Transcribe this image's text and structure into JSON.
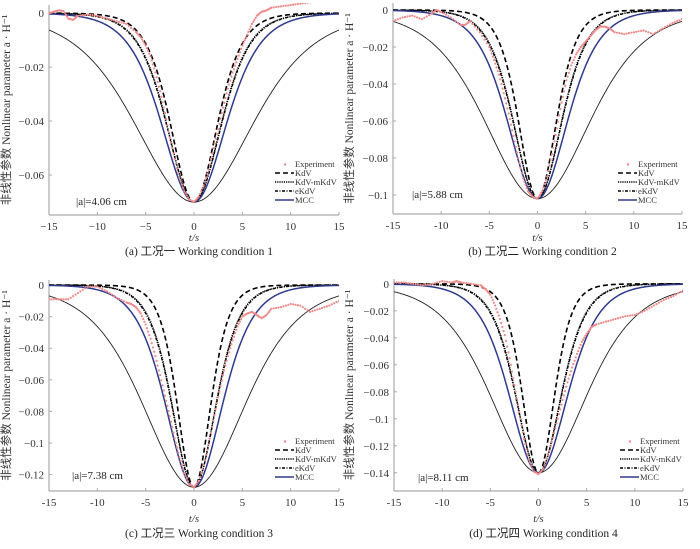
{
  "colors": {
    "experiment": "#f08a8a",
    "kdv": "#000000",
    "kdv_mkdv": "#000000",
    "ekdv": "#000000",
    "mcc": "#2e3a8c",
    "axis": "#aaaaaa"
  },
  "legend_entries": [
    "Experiment",
    "KdV",
    "KdV-mKdV",
    "eKdV",
    "MCC"
  ],
  "chart_data": [
    {
      "type": "line",
      "id": "a",
      "caption": "(a) 工况一 Working condition 1",
      "xlabel": "t/s",
      "ylabel": "非线性参数 Nonlinear parameter a · H⁻¹",
      "annotation": "|a|=4.06 cm",
      "xlim": [
        -15,
        15
      ],
      "ylim": [
        -0.0748,
        0.003
      ],
      "xticks": [
        -15,
        -10,
        -5,
        0,
        5,
        10,
        15
      ],
      "xtick_labels": [
        "−15",
        "−10",
        "−5",
        "0",
        "5",
        "10",
        "15"
      ],
      "yticks": [
        0,
        -0.02,
        -0.04,
        -0.06
      ],
      "ytick_labels": [
        "0",
        "−0.02",
        "−0.04",
        "−0.06"
      ],
      "legend_position": "bottom-right",
      "amplitude": -0.07,
      "series": [
        {
          "name": "KdV",
          "style": "dashed",
          "model": "sech2",
          "width": 3.2
        },
        {
          "name": "KdV-mKdV",
          "style": "dotted",
          "model": "sech2",
          "width": 3.7
        },
        {
          "name": "eKdV",
          "style": "dashdot",
          "model": "sech2",
          "width": 3.75
        },
        {
          "name": "MCC",
          "style": "solid-blue",
          "model": "sech2",
          "width": 4.4
        },
        {
          "name": "wide-reference",
          "style": "solid-thin",
          "model": "sech2",
          "width": 8.0
        },
        {
          "name": "Experiment",
          "style": "markers",
          "x": [
            -15,
            -14.5,
            -14,
            -13.5,
            -13,
            -12.5,
            -12,
            -11,
            -10,
            -9,
            -8,
            -7,
            -6,
            -5.5,
            -5,
            -4.5,
            -4,
            -3.5,
            -3,
            -2.5,
            -2,
            -1.5,
            -1,
            -0.5,
            0,
            0.5,
            1,
            1.5,
            2,
            2.5,
            3,
            3.5,
            4,
            4.5,
            5,
            5.5,
            6,
            6.5,
            7,
            7.5,
            8,
            9,
            10,
            11,
            12,
            13
          ],
          "y": [
            0,
            0.0005,
            0.001,
            0.0008,
            -0.002,
            -0.0025,
            -0.001,
            -0.0005,
            -0.001,
            -0.002,
            -0.003,
            -0.004,
            -0.007,
            -0.009,
            -0.012,
            -0.016,
            -0.022,
            -0.029,
            -0.037,
            -0.046,
            -0.054,
            -0.061,
            -0.066,
            -0.069,
            -0.07,
            -0.068,
            -0.064,
            -0.058,
            -0.05,
            -0.043,
            -0.035,
            -0.028,
            -0.022,
            -0.017,
            -0.012,
            -0.008,
            -0.004,
            -0.001,
            0.0005,
            0.001,
            0.002,
            0.0025,
            0.003,
            0.0035,
            0.004,
            0.005
          ]
        }
      ]
    },
    {
      "type": "line",
      "id": "b",
      "caption": "(b) 工况二 Working condition 2",
      "xlabel": "t/s",
      "ylabel": "非线性参数 Nonlinear parameter a · H⁻¹",
      "annotation": "|a|=5.88 cm",
      "xlim": [
        -15,
        15
      ],
      "ylim": [
        -0.1103,
        0.0038
      ],
      "xticks": [
        -15,
        -10,
        -5,
        0,
        5,
        10,
        15
      ],
      "xtick_labels": [
        "-15",
        "-10",
        "-5",
        "0",
        "5",
        "10",
        "15"
      ],
      "yticks": [
        0,
        -0.02,
        -0.04,
        -0.06,
        -0.08,
        -0.1
      ],
      "ytick_labels": [
        "0",
        "−0.02",
        "−0.04",
        "−0.06",
        "−0.08",
        "−0.1"
      ],
      "legend_position": "bottom-right",
      "amplitude": -0.102,
      "series": [
        {
          "name": "KdV",
          "style": "dashed",
          "model": "sech2",
          "width": 2.6
        },
        {
          "name": "KdV-mKdV",
          "style": "dotted",
          "model": "sech2",
          "width": 3.3
        },
        {
          "name": "eKdV",
          "style": "dashdot",
          "model": "sech2",
          "width": 3.35
        },
        {
          "name": "MCC",
          "style": "solid-blue",
          "model": "sech2",
          "width": 4.1
        },
        {
          "name": "wide-reference",
          "style": "solid-thin",
          "model": "sech2",
          "width": 7.2
        },
        {
          "name": "Experiment",
          "style": "markers",
          "x": [
            -15,
            -14,
            -13,
            -12,
            -11,
            -10.5,
            -10,
            -9,
            -8,
            -7.5,
            -7,
            -6,
            -5,
            -4.5,
            -4,
            -3.5,
            -3,
            -2.5,
            -2,
            -1.5,
            -1,
            -0.5,
            0,
            0.5,
            1,
            1.5,
            2,
            2.5,
            3,
            3.5,
            4,
            4.5,
            5,
            5.5,
            6,
            6.5,
            7,
            7.5,
            8,
            9,
            10,
            11,
            12,
            13,
            14,
            15
          ],
          "y": [
            -0.006,
            -0.004,
            -0.003,
            -0.005,
            -0.002,
            0,
            -0.001,
            -0.004,
            -0.008,
            -0.008,
            -0.006,
            -0.012,
            -0.02,
            -0.027,
            -0.035,
            -0.045,
            -0.056,
            -0.068,
            -0.08,
            -0.091,
            -0.098,
            -0.101,
            -0.102,
            -0.098,
            -0.09,
            -0.078,
            -0.064,
            -0.05,
            -0.038,
            -0.03,
            -0.024,
            -0.02,
            -0.017,
            -0.014,
            -0.011,
            -0.009,
            -0.009,
            -0.01,
            -0.012,
            -0.013,
            -0.012,
            -0.011,
            -0.013,
            -0.01,
            -0.007,
            -0.005
          ]
        }
      ]
    },
    {
      "type": "line",
      "id": "c",
      "caption": "(c) 工况三 Working condition 3",
      "xlabel": "t/s",
      "ylabel": "非线性参数 Nonlinear parameter a · H⁻¹",
      "annotation": "|a|=7.38 cm",
      "xlim": [
        -15,
        15
      ],
      "ylim": [
        -0.1304,
        0.0032
      ],
      "xticks": [
        -15,
        -10,
        -5,
        0,
        5,
        10,
        15
      ],
      "xtick_labels": [
        "-15",
        "-10",
        "-5",
        "0",
        "5",
        "10",
        "15"
      ],
      "yticks": [
        0,
        -0.02,
        -0.04,
        -0.06,
        -0.08,
        -0.1,
        -0.12
      ],
      "ytick_labels": [
        "0",
        "−0.02",
        "−0.04",
        "−0.06",
        "−0.08",
        "−0.1",
        "−0.12"
      ],
      "legend_position": "bottom-right",
      "amplitude": -0.128,
      "series": [
        {
          "name": "KdV",
          "style": "dashed",
          "model": "sech2",
          "width": 2.3
        },
        {
          "name": "KdV-mKdV",
          "style": "dotted",
          "model": "sech2",
          "width": 3.0
        },
        {
          "name": "eKdV",
          "style": "dashdot",
          "model": "sech2",
          "width": 3.05
        },
        {
          "name": "MCC",
          "style": "solid-blue",
          "model": "sech2",
          "width": 3.9
        },
        {
          "name": "wide-reference",
          "style": "solid-thin",
          "model": "sech2",
          "width": 7.0
        },
        {
          "name": "Experiment",
          "style": "markers",
          "x": [
            -15,
            -14,
            -13,
            -12,
            -11,
            -10,
            -9,
            -8,
            -7,
            -6.5,
            -6,
            -5.5,
            -5,
            -4.5,
            -4,
            -3.5,
            -3,
            -2.5,
            -2,
            -1.5,
            -1,
            -0.5,
            0,
            0.5,
            1,
            1.5,
            2,
            2.5,
            3,
            3.5,
            4,
            4.5,
            5,
            5.5,
            6,
            6.5,
            7,
            7.5,
            8,
            9,
            10,
            11,
            12,
            13,
            14,
            15
          ],
          "y": [
            -0.009,
            -0.009,
            -0.009,
            -0.005,
            -0.001,
            -0.001,
            -0.004,
            -0.008,
            -0.011,
            -0.012,
            -0.014,
            -0.018,
            -0.025,
            -0.034,
            -0.045,
            -0.057,
            -0.07,
            -0.083,
            -0.097,
            -0.109,
            -0.119,
            -0.126,
            -0.128,
            -0.124,
            -0.114,
            -0.101,
            -0.086,
            -0.071,
            -0.057,
            -0.045,
            -0.035,
            -0.026,
            -0.02,
            -0.018,
            -0.017,
            -0.019,
            -0.021,
            -0.019,
            -0.015,
            -0.014,
            -0.012,
            -0.013,
            -0.017,
            -0.015,
            -0.013,
            -0.01
          ]
        }
      ]
    },
    {
      "type": "line",
      "id": "d",
      "caption": "(d) 工况四 Working condition 4",
      "xlabel": "t/s",
      "ylabel": "非线性参数 Nonlinear parameter a · H⁻¹",
      "annotation": "|a|=8.11 cm",
      "xlim": [
        -15,
        15
      ],
      "ylim": [
        -0.1535,
        0.0036
      ],
      "xticks": [
        -15,
        -10,
        -5,
        0,
        5,
        10,
        15
      ],
      "xtick_labels": [
        "-15",
        "-10",
        "-5",
        "0",
        "5",
        "10",
        "15"
      ],
      "yticks": [
        0,
        -0.02,
        -0.04,
        -0.06,
        -0.08,
        -0.1,
        -0.12,
        -0.14
      ],
      "ytick_labels": [
        "0",
        "−0.02",
        "−0.04",
        "−0.06",
        "−0.08",
        "−0.1",
        "−0.12",
        "−0.14"
      ],
      "legend_position": "bottom-right",
      "amplitude": -0.14,
      "series": [
        {
          "name": "KdV",
          "style": "dashed",
          "model": "sech2",
          "width": 2.2
        },
        {
          "name": "KdV-mKdV",
          "style": "dotted",
          "model": "sech2",
          "width": 3.1
        },
        {
          "name": "eKdV",
          "style": "dashdot",
          "model": "sech2",
          "width": 3.15
        },
        {
          "name": "MCC",
          "style": "solid-blue",
          "model": "sech2",
          "width": 4.0
        },
        {
          "name": "wide-reference",
          "style": "solid-thin",
          "model": "sech2",
          "width": 6.6
        },
        {
          "name": "Experiment",
          "style": "markers",
          "x": [
            -15,
            -14,
            -13,
            -12,
            -11,
            -10,
            -9,
            -8.5,
            -8,
            -7,
            -6,
            -5.5,
            -5,
            -4.5,
            -4,
            -3.5,
            -3,
            -2.5,
            -2,
            -1.5,
            -1,
            -0.5,
            0,
            0.5,
            1,
            1.5,
            2,
            2.5,
            3,
            3.5,
            4,
            4.5,
            5,
            5.5,
            6,
            7,
            8,
            9,
            10,
            11,
            12,
            13,
            14,
            15
          ],
          "y": [
            0.001,
            0.001,
            0,
            -0.001,
            0,
            0.002,
            0.001,
            0.002,
            0.001,
            0,
            -0.001,
            -0.004,
            -0.008,
            -0.016,
            -0.026,
            -0.038,
            -0.055,
            -0.075,
            -0.095,
            -0.115,
            -0.13,
            -0.139,
            -0.141,
            -0.137,
            -0.127,
            -0.114,
            -0.1,
            -0.086,
            -0.073,
            -0.062,
            -0.052,
            -0.043,
            -0.037,
            -0.032,
            -0.03,
            -0.028,
            -0.026,
            -0.024,
            -0.023,
            -0.02,
            -0.016,
            -0.012,
            -0.009,
            -0.005
          ]
        }
      ]
    }
  ]
}
